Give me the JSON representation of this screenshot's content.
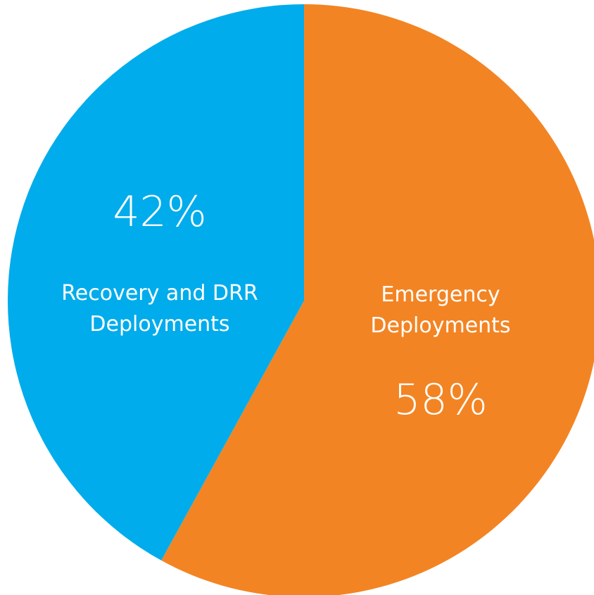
{
  "chart_data": {
    "type": "pie",
    "start_angle_deg": 0,
    "direction": "clockwise",
    "slices": [
      {
        "label_lines": [
          "Emergency",
          "Deployments"
        ],
        "value": 58,
        "value_label": "58%",
        "color": "#F38423"
      },
      {
        "label_lines": [
          "Recovery and DRR",
          "Deployments"
        ],
        "value": 42,
        "value_label": "42%",
        "color": "#00ACEB"
      }
    ]
  }
}
